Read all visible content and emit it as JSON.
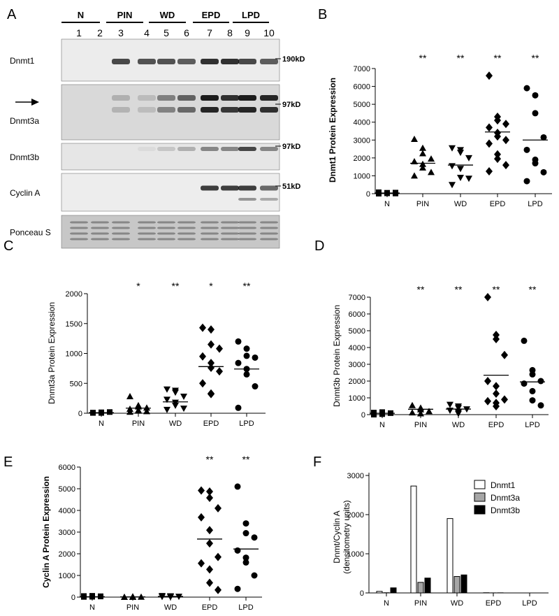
{
  "figure": {
    "panel_letters": [
      "A",
      "B",
      "C",
      "D",
      "E",
      "F"
    ]
  },
  "blot": {
    "groups": [
      "N",
      "PIN",
      "WD",
      "EPD",
      "LPD"
    ],
    "lanes": [
      "1",
      "2",
      "3",
      "4",
      "5",
      "6",
      "7",
      "8",
      "9",
      "10"
    ],
    "rows": [
      {
        "label": "Dnmt1",
        "size": "190kD",
        "arrow": false
      },
      {
        "label": "Dnmt3a",
        "size": "97kD",
        "arrow": true
      },
      {
        "label": "Dnmt3b",
        "size": "97kD",
        "arrow": false
      },
      {
        "label": "Cyclin A",
        "size": "51kD",
        "arrow": false
      },
      {
        "label": "Ponceau S",
        "size": "",
        "arrow": false
      }
    ],
    "band_intensity": [
      [
        0.0,
        0.0,
        0.75,
        0.7,
        0.7,
        0.65,
        0.85,
        0.85,
        0.75,
        0.65
      ],
      [
        0.0,
        0.0,
        0.2,
        0.15,
        0.45,
        0.6,
        0.95,
        0.85,
        0.95,
        0.9
      ],
      [
        0.0,
        0.0,
        0.0,
        0.05,
        0.15,
        0.25,
        0.45,
        0.45,
        0.75,
        0.45
      ],
      [
        0.0,
        0.0,
        0.0,
        0.0,
        0.0,
        0.0,
        0.8,
        0.8,
        0.8,
        0.6
      ],
      [
        0.35,
        0.35,
        0.35,
        0.35,
        0.35,
        0.35,
        0.35,
        0.35,
        0.35,
        0.35
      ]
    ]
  },
  "chart_data": [
    {
      "panel": "B",
      "type": "scatter",
      "ylabel": "Dnmt1 Protein Expression",
      "ylabel_bold": true,
      "categories": [
        "N",
        "PIN",
        "WD",
        "EPD",
        "LPD"
      ],
      "ylim": [
        0,
        7000
      ],
      "yticks": [
        0,
        1000,
        2000,
        3000,
        4000,
        5000,
        6000,
        7000
      ],
      "markers": [
        "square",
        "triangle",
        "triangle-down",
        "diamond",
        "circle"
      ],
      "significance": [
        "",
        "**",
        "**",
        "**",
        "**"
      ],
      "means": [
        40,
        1700,
        1600,
        3450,
        3000
      ],
      "points": [
        [
          0,
          20,
          40,
          60,
          80,
          30,
          50,
          10,
          70
        ],
        [
          3050,
          2550,
          2250,
          1950,
          1800,
          1650,
          1450,
          1200,
          1000
        ],
        [
          2550,
          2450,
          2300,
          2000,
          1550,
          1400,
          900,
          850,
          500
        ],
        [
          6600,
          4300,
          4100,
          3900,
          3700,
          3400,
          3200,
          3000,
          2800,
          2200,
          1950,
          1600,
          1250
        ],
        [
          5900,
          5500,
          4500,
          3150,
          2450,
          1900,
          1700,
          1200,
          700
        ]
      ]
    },
    {
      "panel": "C",
      "type": "scatter",
      "ylabel": "Dnmt3a Protein Expression",
      "ylabel_bold": false,
      "categories": [
        "N",
        "PIN",
        "WD",
        "EPD",
        "LPD"
      ],
      "ylim": [
        0,
        2000
      ],
      "yticks": [
        0,
        500,
        1000,
        1500,
        2000
      ],
      "markers": [
        "square",
        "triangle",
        "triangle-down",
        "diamond",
        "circle"
      ],
      "significance": [
        "",
        "*",
        "**",
        "*",
        "**"
      ],
      "means": [
        10,
        85,
        190,
        780,
        740
      ],
      "points": [
        [
          5,
          10,
          15,
          20,
          10,
          5
        ],
        [
          280,
          130,
          110,
          90,
          70,
          50,
          40,
          30,
          20
        ],
        [
          400,
          380,
          350,
          280,
          230,
          180,
          130,
          80,
          60
        ],
        [
          1430,
          1400,
          1150,
          1080,
          950,
          840,
          760,
          700,
          500,
          330,
          320
        ],
        [
          1200,
          1080,
          960,
          930,
          840,
          740,
          650,
          450,
          90
        ]
      ]
    },
    {
      "panel": "D",
      "type": "scatter",
      "ylabel": "Dnmt3b Protein Expression",
      "ylabel_bold": false,
      "categories": [
        "N",
        "PIN",
        "WD",
        "EPD",
        "LPD"
      ],
      "ylim": [
        0,
        7000
      ],
      "yticks": [
        0,
        1000,
        2000,
        3000,
        4000,
        5000,
        6000,
        7000
      ],
      "markers": [
        "square",
        "triangle",
        "triangle-down",
        "diamond",
        "circle"
      ],
      "significance": [
        "",
        "**",
        "**",
        "**",
        "**"
      ],
      "means": [
        80,
        320,
        330,
        2350,
        1950
      ],
      "points": [
        [
          0,
          30,
          60,
          90,
          120,
          150,
          50
        ],
        [
          550,
          400,
          300,
          200,
          120,
          60
        ],
        [
          600,
          500,
          400,
          330,
          250,
          150,
          60
        ],
        [
          7000,
          4750,
          4500,
          3550,
          2000,
          1700,
          1250,
          900,
          800,
          700,
          500
        ],
        [
          4400,
          2650,
          2400,
          2000,
          1850,
          1400,
          850,
          550
        ]
      ]
    },
    {
      "panel": "E",
      "type": "scatter",
      "ylabel": "Cyclin A Protein Expression",
      "ylabel_bold": true,
      "categories": [
        "N",
        "PIN",
        "WD",
        "EPD",
        "LPD"
      ],
      "ylim": [
        0,
        6000
      ],
      "yticks": [
        0,
        1000,
        2000,
        3000,
        4000,
        5000,
        6000
      ],
      "markers": [
        "square",
        "triangle",
        "triangle-down",
        "diamond",
        "circle"
      ],
      "significance": [
        "",
        "",
        "",
        "**",
        "**"
      ],
      "means": [
        20,
        10,
        30,
        2680,
        2220
      ],
      "points": [
        [
          10,
          20,
          30,
          40,
          50,
          20,
          60,
          30
        ],
        [
          0,
          10,
          20,
          10,
          0,
          15,
          5
        ],
        [
          60,
          50,
          40,
          30,
          20,
          10
        ],
        [
          4920,
          4870,
          4580,
          4100,
          3680,
          3090,
          2480,
          1850,
          1560,
          1280,
          660,
          330
        ],
        [
          5100,
          3400,
          2950,
          2750,
          2150,
          1820,
          1600,
          1000,
          380
        ]
      ]
    },
    {
      "panel": "F",
      "type": "bar",
      "ylabel": "Dnmt/Cyclin A\n(densitometry units)",
      "categories": [
        "N",
        "PIN",
        "WD",
        "EPD",
        "LPD"
      ],
      "ylim": [
        0,
        3000
      ],
      "yticks": [
        0,
        1000,
        2000,
        3000
      ],
      "legend_position": "top-right",
      "series": [
        {
          "name": "Dnmt1",
          "fill": "#ffffff",
          "values": [
            40,
            2730,
            1900,
            5,
            0
          ]
        },
        {
          "name": "Dnmt3a",
          "fill": "#a6a6a6",
          "values": [
            5,
            270,
            420,
            2,
            0
          ]
        },
        {
          "name": "Dnmt3b",
          "fill": "#000000",
          "values": [
            130,
            380,
            460,
            3,
            0
          ]
        }
      ]
    }
  ]
}
